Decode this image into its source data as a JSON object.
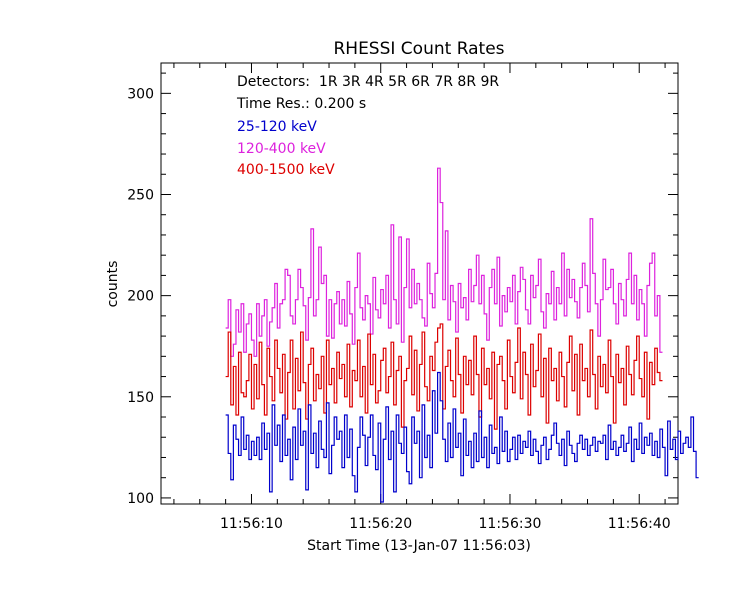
{
  "chart_data": {
    "type": "line",
    "title": "RHESSI Count Rates",
    "xlabel": "Start Time (13-Jan-07 11:56:03)",
    "ylabel": "counts",
    "x_tick_labels": [
      "11:56:10",
      "11:56:20",
      "11:56:30",
      "11:56:40"
    ],
    "x_tick_values_seconds": [
      10,
      20,
      30,
      40
    ],
    "xlim_seconds": [
      3.0,
      43.0
    ],
    "y_ticks": [
      100,
      150,
      200,
      250,
      300
    ],
    "ylim": [
      97,
      315
    ],
    "grid": false,
    "annotations": {
      "detectors": "Detectors:  1R 3R 4R 5R 6R 7R 8R 9R",
      "time_res": "Time Res.: 0.200 s"
    },
    "time_resolution_s": 0.2,
    "x_start_seconds": 8.0,
    "series": [
      {
        "name": "25-120 keV",
        "color": "#0000cc",
        "values": [
          141,
          122,
          109,
          136,
          129,
          121,
          140,
          124,
          131,
          119,
          128,
          121,
          130,
          119,
          137,
          124,
          132,
          103,
          146,
          126,
          136,
          118,
          141,
          121,
          129,
          109,
          135,
          119,
          144,
          126,
          133,
          104,
          146,
          122,
          132,
          115,
          138,
          124,
          120,
          147,
          112,
          126,
          140,
          129,
          133,
          115,
          141,
          120,
          134,
          111,
          103,
          125,
          140,
          131,
          116,
          130,
          141,
          121,
          114,
          137,
          98,
          129,
          145,
          119,
          133,
          103,
          141,
          127,
          122,
          135,
          113,
          107,
          140,
          127,
          133,
          110,
          146,
          120,
          131,
          115,
          153,
          132,
          162,
          148,
          129,
          118,
          137,
          120,
          144,
          125,
          132,
          111,
          139,
          121,
          128,
          115,
          132,
          118,
          143,
          120,
          130,
          115,
          136,
          122,
          125,
          117,
          140,
          123,
          133,
          118,
          124,
          130,
          119,
          131,
          122,
          128,
          125,
          133,
          121,
          129,
          123,
          117,
          126,
          130,
          119,
          124,
          131,
          137,
          127,
          121,
          129,
          116,
          133,
          126,
          122,
          118,
          127,
          131,
          124,
          129,
          121,
          126,
          130,
          123,
          128,
          127,
          131,
          119,
          136,
          124,
          128,
          121,
          125,
          131,
          123,
          127,
          135,
          118,
          129,
          124,
          137,
          122,
          130,
          126,
          132,
          121,
          128,
          120,
          134,
          125,
          111,
          138,
          124,
          129,
          119,
          133,
          122,
          127,
          130,
          125,
          140,
          123,
          110
        ]
      },
      {
        "name": "120-400 keV",
        "color": "#dd22dd",
        "values": [
          184,
          198,
          170,
          176,
          193,
          182,
          196,
          172,
          186,
          191,
          178,
          170,
          196,
          180,
          190,
          198,
          175,
          187,
          194,
          206,
          184,
          196,
          198,
          213,
          210,
          190,
          186,
          198,
          213,
          204,
          195,
          178,
          199,
          233,
          190,
          198,
          224,
          206,
          210,
          180,
          198,
          179,
          196,
          202,
          186,
          198,
          185,
          207,
          191,
          176,
          204,
          221,
          194,
          188,
          200,
          196,
          181,
          209,
          193,
          189,
          203,
          196,
          210,
          184,
          235,
          198,
          186,
          229,
          177,
          204,
          228,
          194,
          213,
          196,
          206,
          198,
          189,
          185,
          216,
          201,
          194,
          211,
          263,
          246,
          198,
          232,
          188,
          205,
          197,
          182,
          206,
          194,
          199,
          188,
          213,
          197,
          205,
          220,
          196,
          210,
          191,
          178,
          204,
          213,
          196,
          219,
          185,
          200,
          192,
          204,
          197,
          210,
          186,
          202,
          214,
          208,
          193,
          186,
          210,
          199,
          205,
          218,
          192,
          184,
          201,
          196,
          212,
          188,
          204,
          196,
          221,
          190,
          213,
          199,
          208,
          197,
          189,
          204,
          216,
          205,
          192,
          238,
          211,
          196,
          180,
          198,
          218,
          203,
          204,
          213,
          196,
          186,
          206,
          198,
          190,
          208,
          221,
          196,
          210,
          188,
          203,
          196,
          180,
          205,
          216,
          221,
          190,
          200,
          172
        ]
      },
      {
        "name": "400-1500 keV",
        "color": "#dd0000",
        "values": [
          160,
          182,
          146,
          165,
          141,
          172,
          152,
          150,
          158,
          171,
          144,
          166,
          149,
          177,
          156,
          141,
          174,
          160,
          148,
          178,
          164,
          152,
          171,
          139,
          162,
          178,
          144,
          169,
          153,
          182,
          157,
          139,
          166,
          174,
          148,
          161,
          154,
          170,
          142,
          178,
          156,
          164,
          147,
          172,
          159,
          166,
          150,
          176,
          145,
          163,
          158,
          178,
          150,
          165,
          142,
          181,
          156,
          171,
          147,
          153,
          168,
          174,
          152,
          160,
          177,
          146,
          163,
          170,
          135,
          158,
          164,
          180,
          151,
          173,
          143,
          166,
          182,
          155,
          148,
          170,
          163,
          177,
          184,
          186,
          144,
          165,
          173,
          158,
          150,
          179,
          161,
          142,
          170,
          156,
          168,
          151,
          180,
          161,
          140,
          174,
          156,
          164,
          149,
          172,
          134,
          166,
          170,
          158,
          144,
          178,
          160,
          152,
          167,
          184,
          149,
          172,
          161,
          141,
          176,
          155,
          163,
          181,
          150,
          169,
          137,
          174,
          158,
          164,
          148,
          172,
          160,
          145,
          167,
          180,
          153,
          171,
          141,
          176,
          158,
          164,
          150,
          183,
          161,
          144,
          170,
          155,
          166,
          152,
          178,
          160,
          137,
          171,
          157,
          164,
          146,
          175,
          161,
          151,
          168,
          180,
          159,
          150,
          172,
          139,
          167,
          156,
          174,
          162,
          158
        ]
      }
    ]
  }
}
